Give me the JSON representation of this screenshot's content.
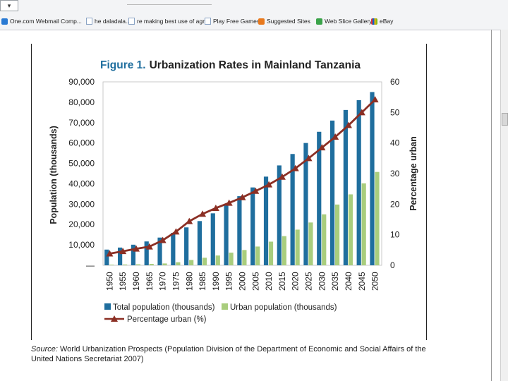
{
  "browser": {
    "favorites": [
      {
        "label": "One.com Webmail Comp...",
        "icon": "ie-icon"
      },
      {
        "label": "he daladala...",
        "icon": "page-icon"
      },
      {
        "label": "re making best use of agri...",
        "icon": "page-icon"
      },
      {
        "label": "Play Free Games",
        "icon": "page-icon"
      },
      {
        "label": "Suggested Sites",
        "icon": "suggested-sites-icon"
      },
      {
        "label": "Web Slice Gallery",
        "icon": "web-slice-icon"
      },
      {
        "label": "eBay",
        "icon": "ebay-icon"
      }
    ]
  },
  "chart_data": {
    "type": "bar",
    "title_prefix": "Figure 1.",
    "title": "Urbanization Rates in Mainland Tanzania",
    "categories": [
      "1950",
      "1955",
      "1960",
      "1965",
      "1970",
      "1975",
      "1980",
      "1985",
      "1990",
      "1995",
      "2000",
      "2005",
      "2010",
      "2015",
      "2020",
      "2025",
      "2030",
      "2035",
      "2040",
      "2045",
      "2050"
    ],
    "series": [
      {
        "name": "Total population (thousands)",
        "axis": "left",
        "color": "#1f6e9e",
        "values": [
          7700,
          8700,
          10100,
          11700,
          13600,
          15900,
          18600,
          21700,
          25500,
          29900,
          33900,
          38200,
          43500,
          49000,
          54600,
          60000,
          65500,
          71000,
          76200,
          81000,
          85000
        ]
      },
      {
        "name": "Urban population (thousands)",
        "axis": "left",
        "color": "#a9cd7d",
        "values": [
          300,
          400,
          500,
          700,
          900,
          1500,
          2600,
          3700,
          4800,
          6200,
          7500,
          9200,
          11600,
          14300,
          17500,
          21000,
          25000,
          29800,
          34800,
          40200,
          45800
        ]
      },
      {
        "name": "Percentage urban (%)",
        "type": "line",
        "axis": "right",
        "color": "#8b2f24",
        "marker": "triangle",
        "values": [
          3.8,
          4.6,
          5.4,
          6.1,
          8.2,
          11.0,
          14.4,
          16.8,
          18.7,
          20.4,
          22.2,
          24.3,
          26.4,
          28.9,
          31.7,
          35.0,
          38.5,
          42.0,
          45.8,
          50.0,
          54.2
        ]
      }
    ],
    "ylabel": "Population (thousands)",
    "y2label": "Percentage urban",
    "ylim": [
      0,
      90000
    ],
    "y2lim": [
      0,
      60
    ],
    "yticks": [
      "—",
      "10,000",
      "20,000",
      "30,000",
      "40,000",
      "50,000",
      "60,000",
      "70,000",
      "80,000",
      "90,000"
    ],
    "y2ticks": [
      "0",
      "10",
      "20",
      "30",
      "40",
      "50",
      "60"
    ],
    "legend_position": "bottom",
    "source_label": "Source:",
    "source_text": "World Urbanization Prospects (Population Division of the Department of Economic and Social Affairs of the United Nations Secretariat 2007)"
  }
}
